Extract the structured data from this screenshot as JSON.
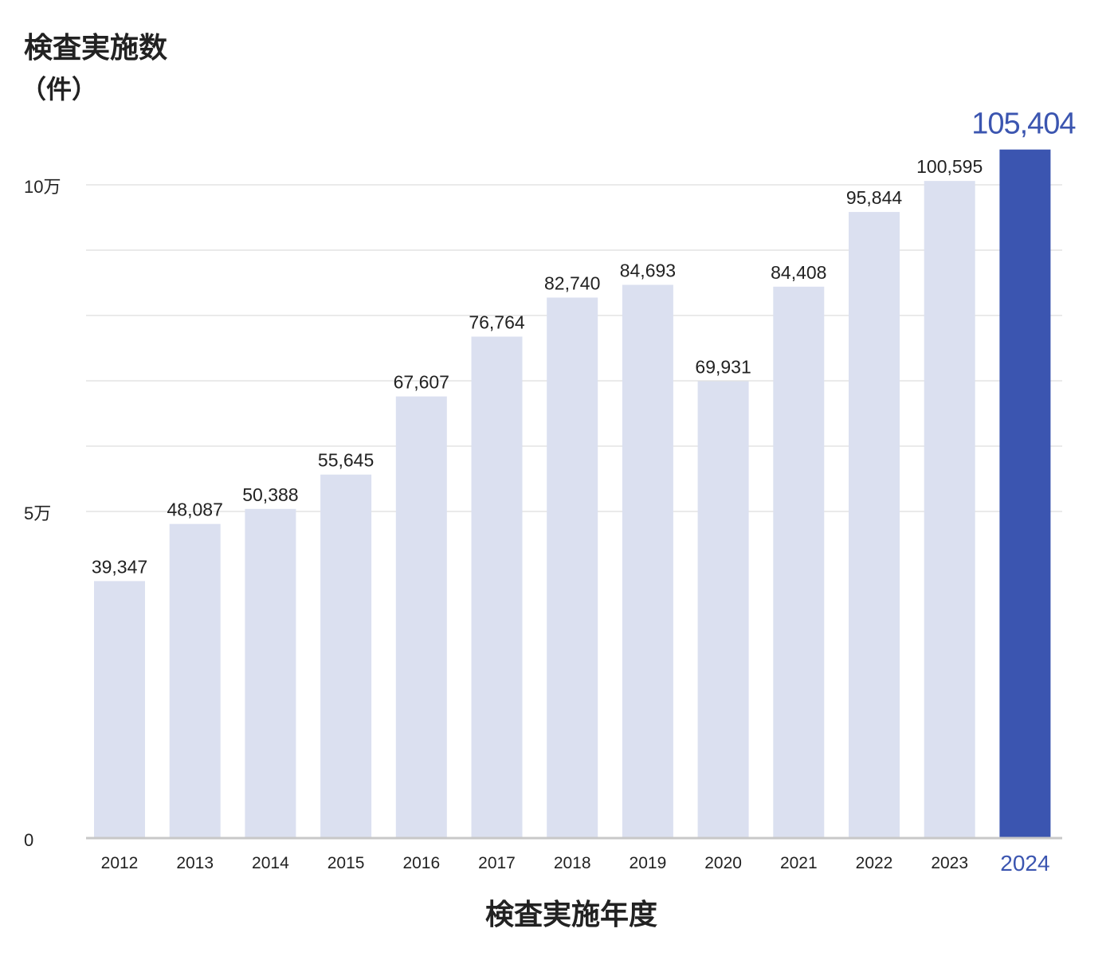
{
  "chart_data": {
    "type": "bar",
    "title": "検査実施数",
    "ylabel_unit": "（件）",
    "xlabel": "検査実施年度",
    "categories": [
      "2012",
      "2013",
      "2014",
      "2015",
      "2016",
      "2017",
      "2018",
      "2019",
      "2020",
      "2021",
      "2022",
      "2023",
      "2024"
    ],
    "values": [
      39347,
      48087,
      50388,
      55645,
      67607,
      76764,
      82740,
      84693,
      69931,
      84408,
      95844,
      100595,
      105404
    ],
    "value_labels": [
      "39,347",
      "48,087",
      "50,388",
      "55,645",
      "67,607",
      "76,764",
      "82,740",
      "84,693",
      "69,931",
      "84,408",
      "95,844",
      "100,595",
      "105,404"
    ],
    "highlight_index": 12,
    "ylim": [
      0,
      110000
    ],
    "y_tick_labels": [
      {
        "value": 0,
        "label": "0"
      },
      {
        "value": 50000,
        "label": "5万"
      },
      {
        "value": 100000,
        "label": "10万"
      }
    ],
    "gridlines": [
      50000,
      60000,
      70000,
      80000,
      90000,
      100000
    ],
    "grid": true,
    "legend": "none",
    "colors": {
      "bar": "#dbe0f0",
      "highlight_bar": "#3b55b0",
      "highlight_text": "#3b55b0",
      "grid": "#dddddd",
      "axis": "#c8c8c8",
      "text": "#222222"
    }
  }
}
